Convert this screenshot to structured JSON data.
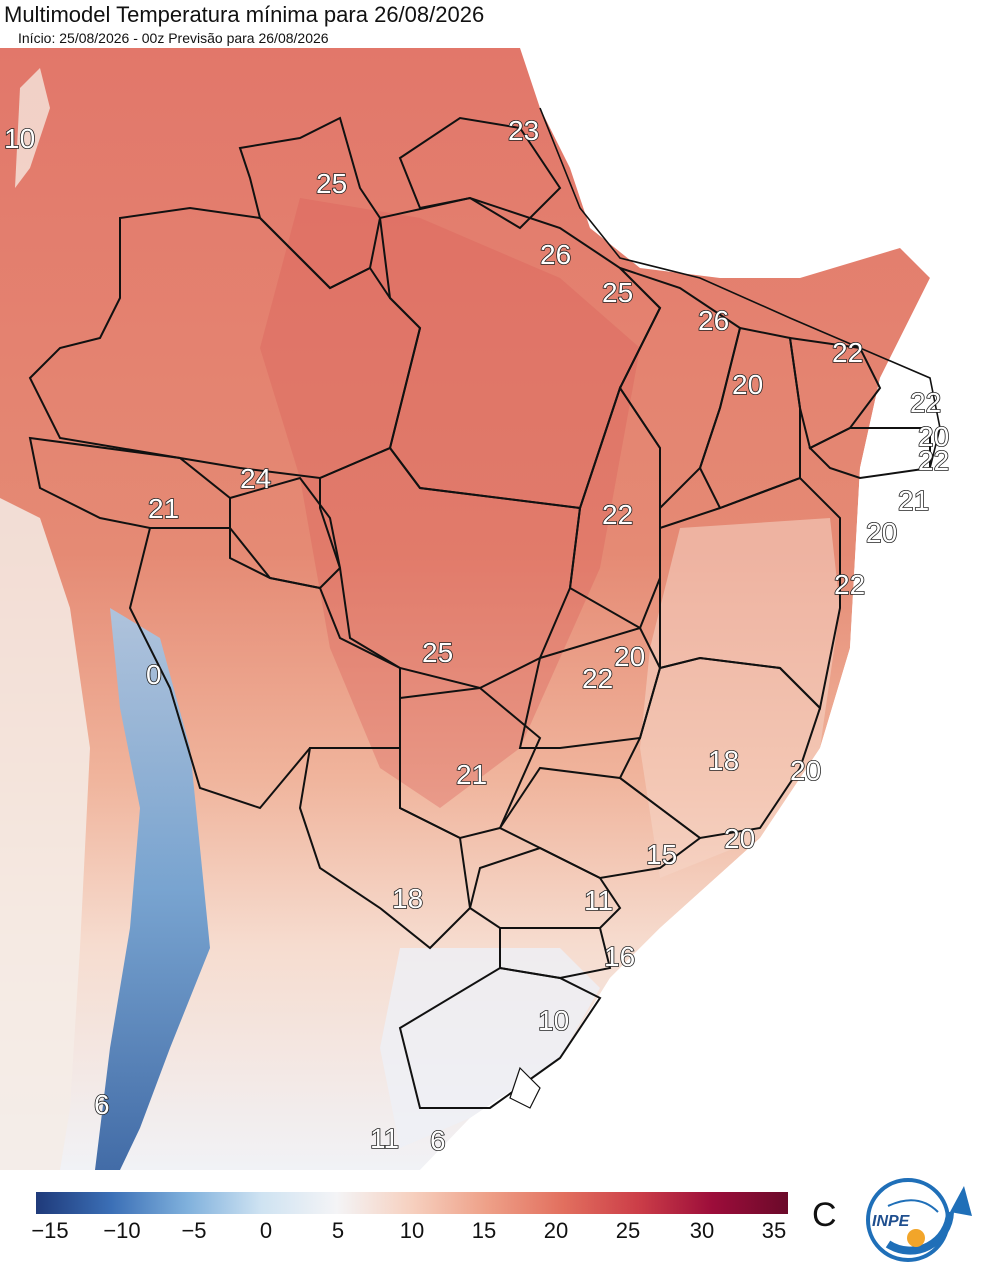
{
  "header": {
    "title": "Multimodel Temperatura mínima para 26/08/2026",
    "subtitle": "Início: 25/08/2026 - 00z  Previsão para 26/08/2026"
  },
  "map": {
    "temperature_labels": [
      "10",
      "25",
      "23",
      "26",
      "25",
      "26",
      "22",
      "20",
      "22",
      "20",
      "22",
      "21",
      "20",
      "22",
      "24",
      "21",
      "22",
      "20",
      "22",
      "25",
      "18",
      "21",
      "20",
      "18",
      "20",
      "15",
      "11",
      "16",
      "10",
      "6",
      "11",
      "6",
      "0"
    ]
  },
  "colorbar": {
    "ticks": [
      "−15",
      "−10",
      "−5",
      "0",
      "5",
      "10",
      "15",
      "20",
      "25",
      "30",
      "35"
    ],
    "unit": "C",
    "colors": [
      "#1f3a7a",
      "#3b6fb6",
      "#7fb0dc",
      "#cfe3f2",
      "#f4f4f6",
      "#f6d0bf",
      "#eea088",
      "#e2705f",
      "#cc3e48",
      "#9c0d3a",
      "#6b0a2a"
    ]
  },
  "logo": {
    "text": "INPE"
  }
}
